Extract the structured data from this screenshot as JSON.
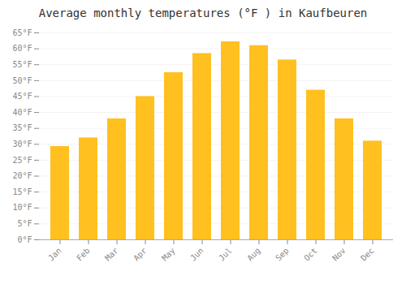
{
  "chart_data": {
    "type": "bar",
    "title": "Average monthly temperatures (°F ) in Kaufbeuren",
    "categories": [
      "Jan",
      "Feb",
      "Mar",
      "Apr",
      "May",
      "Jun",
      "Jul",
      "Aug",
      "Sep",
      "Oct",
      "Nov",
      "Dec"
    ],
    "values": [
      29.3,
      32.0,
      38.0,
      45.0,
      52.5,
      58.5,
      62.2,
      61.0,
      56.5,
      47.0,
      38.0,
      31.0
    ],
    "color": "#FFC020",
    "ylim": [
      0,
      65
    ],
    "yticks": [
      {
        "value": 0,
        "label": "0°F"
      },
      {
        "value": 5,
        "label": "5°F"
      },
      {
        "value": 10,
        "label": "10°F"
      },
      {
        "value": 15,
        "label": "15°F"
      },
      {
        "value": 20,
        "label": "20°F"
      },
      {
        "value": 25,
        "label": "25°F"
      },
      {
        "value": 30,
        "label": "30°F"
      },
      {
        "value": 35,
        "label": "35°F"
      },
      {
        "value": 40,
        "label": "40°F"
      },
      {
        "value": 45,
        "label": "45°F"
      },
      {
        "value": 50,
        "label": "50°F"
      },
      {
        "value": 55,
        "label": "55°F"
      },
      {
        "value": 60,
        "label": "60°F"
      },
      {
        "value": 65,
        "label": "65°F"
      }
    ],
    "grid": true
  }
}
